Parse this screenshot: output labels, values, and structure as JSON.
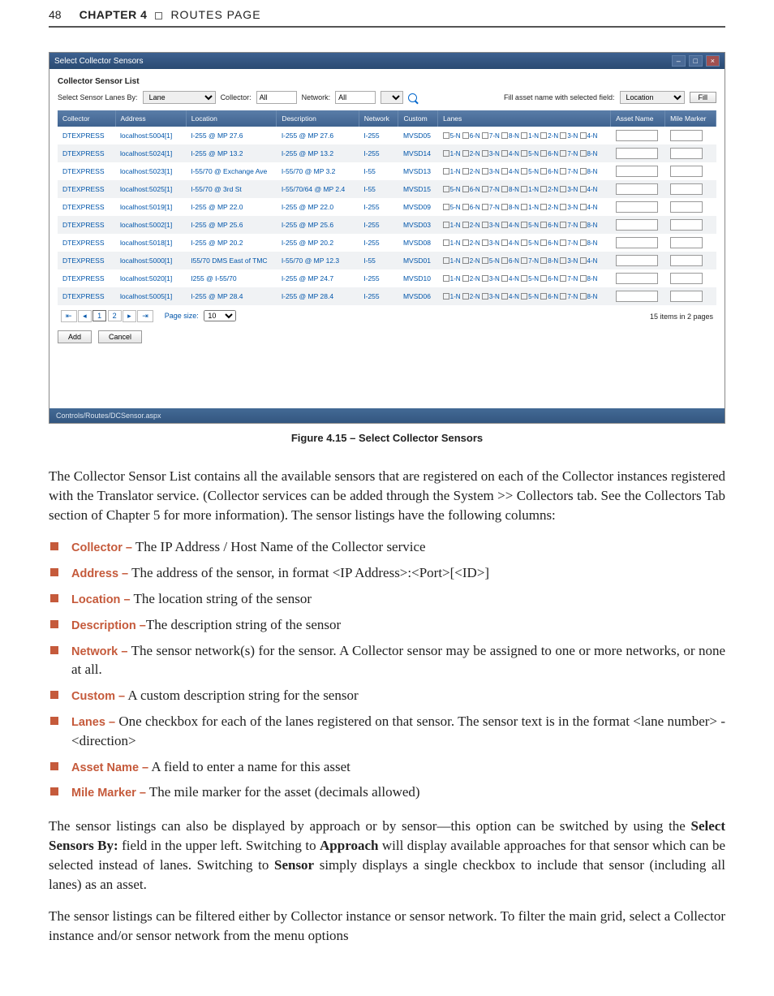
{
  "header": {
    "page_number": "48",
    "chapter_label": "CHAPTER 4",
    "chapter_title": "ROUTES PAGE"
  },
  "figure": {
    "caption": "Figure 4.15 – Select Collector Sensors",
    "window_title": "Select Collector Sensors",
    "section_title": "Collector Sensor List",
    "filter": {
      "select_by_label": "Select Sensor Lanes By:",
      "select_by_value": "Lane",
      "collector_label": "Collector:",
      "collector_value": "All",
      "network_label": "Network:",
      "network_value": "All",
      "fill_label": "Fill asset name with selected field:",
      "fill_value": "Location",
      "fill_button": "Fill"
    },
    "columns": [
      "Collector",
      "Address",
      "Location",
      "Description",
      "Network",
      "Custom",
      "Lanes",
      "Asset Name",
      "Mile Marker"
    ],
    "col_widths": [
      "70px",
      "86px",
      "110px",
      "100px",
      "48px",
      "48px",
      "210px",
      "66px",
      "62px"
    ],
    "rows": [
      {
        "collector": "DTEXPRESS",
        "address": "localhost:5004[1]",
        "location": "I-255 @ MP 27.6",
        "description": "I-255 @ MP 27.6",
        "network": "I-255",
        "custom": "MVSD05",
        "lanes": [
          "5-N",
          "6-N",
          "7-N",
          "8-N",
          "1-N",
          "2-N",
          "3-N",
          "4-N"
        ]
      },
      {
        "collector": "DTEXPRESS",
        "address": "localhost:5024[1]",
        "location": "I-255 @ MP 13.2",
        "description": "I-255 @ MP 13.2",
        "network": "I-255",
        "custom": "MVSD14",
        "lanes": [
          "1-N",
          "2-N",
          "3-N",
          "4-N",
          "5-N",
          "6-N",
          "7-N",
          "8-N"
        ]
      },
      {
        "collector": "DTEXPRESS",
        "address": "localhost:5023[1]",
        "location": "I-55/70 @ Exchange Ave",
        "description": "I-55/70 @ MP 3.2",
        "network": "I-55",
        "custom": "MVSD13",
        "lanes": [
          "1-N",
          "2-N",
          "3-N",
          "4-N",
          "5-N",
          "6-N",
          "7-N",
          "8-N"
        ]
      },
      {
        "collector": "DTEXPRESS",
        "address": "localhost:5025[1]",
        "location": "I-55/70 @ 3rd St",
        "description": "I-55/70/64 @ MP 2.4",
        "network": "I-55",
        "custom": "MVSD15",
        "lanes": [
          "5-N",
          "6-N",
          "7-N",
          "8-N",
          "1-N",
          "2-N",
          "3-N",
          "4-N"
        ]
      },
      {
        "collector": "DTEXPRESS",
        "address": "localhost:5019[1]",
        "location": "I-255 @ MP 22.0",
        "description": "I-255 @ MP 22.0",
        "network": "I-255",
        "custom": "MVSD09",
        "lanes": [
          "5-N",
          "6-N",
          "7-N",
          "8-N",
          "1-N",
          "2-N",
          "3-N",
          "4-N"
        ]
      },
      {
        "collector": "DTEXPRESS",
        "address": "localhost:5002[1]",
        "location": "I-255 @ MP 25.6",
        "description": "I-255 @ MP 25.6",
        "network": "I-255",
        "custom": "MVSD03",
        "lanes": [
          "1-N",
          "2-N",
          "3-N",
          "4-N",
          "5-N",
          "6-N",
          "7-N",
          "8-N"
        ]
      },
      {
        "collector": "DTEXPRESS",
        "address": "localhost:5018[1]",
        "location": "I-255 @ MP 20.2",
        "description": "I-255 @ MP 20.2",
        "network": "I-255",
        "custom": "MVSD08",
        "lanes": [
          "1-N",
          "2-N",
          "3-N",
          "4-N",
          "5-N",
          "6-N",
          "7-N",
          "8-N"
        ]
      },
      {
        "collector": "DTEXPRESS",
        "address": "localhost:5000[1]",
        "location": "I55/70 DMS East of TMC",
        "description": "I-55/70 @ MP 12.3",
        "network": "I-55",
        "custom": "MVSD01",
        "lanes": [
          "1-N",
          "2-N",
          "5-N",
          "6-N",
          "7-N",
          "8-N",
          "3-N",
          "4-N"
        ]
      },
      {
        "collector": "DTEXPRESS",
        "address": "localhost:5020[1]",
        "location": "I255 @ I-55/70",
        "description": "I-255 @ MP 24.7",
        "network": "I-255",
        "custom": "MVSD10",
        "lanes": [
          "1-N",
          "2-N",
          "3-N",
          "4-N",
          "5-N",
          "6-N",
          "7-N",
          "8-N"
        ]
      },
      {
        "collector": "DTEXPRESS",
        "address": "localhost:5005[1]",
        "location": "I-255 @ MP 28.4",
        "description": "I-255 @ MP 28.4",
        "network": "I-255",
        "custom": "MVSD06",
        "lanes": [
          "1-N",
          "2-N",
          "3-N",
          "4-N",
          "5-N",
          "6-N",
          "7-N",
          "8-N"
        ]
      }
    ],
    "pager": {
      "page_size_label": "Page size:",
      "page_size_value": "10",
      "summary": "15 items in 2 pages",
      "pages": [
        "1",
        "2"
      ]
    },
    "buttons": {
      "add": "Add",
      "cancel": "Cancel"
    },
    "footer_path": "Controls/Routes/DCSensor.aspx"
  },
  "body": {
    "intro": "The Collector Sensor List contains all the available sensors that are registered on each of the Collector instances registered with the Translator service. (Collector services can be added through the System >> Collectors tab. See the Collectors Tab section of Chapter 5 for more information). The sensor listings have the following columns:",
    "features": [
      {
        "term": "Collector –",
        "text": " The IP Address / Host Name of the Collector service"
      },
      {
        "term": "Address –",
        "text": " The address of the sensor, in format <IP Address>:<Port>[<ID>]"
      },
      {
        "term": "Location –",
        "text": " The location string of the sensor"
      },
      {
        "term": "Description –",
        "text": "The description string of the sensor"
      },
      {
        "term": "Network –",
        "text": " The sensor network(s) for the sensor. A Collector sensor may be assigned to one or more networks, or none at all."
      },
      {
        "term": "Custom –",
        "text": " A custom description string for the sensor"
      },
      {
        "term": "Lanes –",
        "text": " One checkbox for each of the lanes registered on that sensor. The sensor text is in the format <lane number> - <direction>"
      },
      {
        "term": "Asset Name –",
        "text": " A field to enter a name for this asset"
      },
      {
        "term": "Mile Marker –",
        "text": " The mile marker for the asset (decimals allowed)"
      }
    ],
    "para2_pre": "The sensor listings can also be displayed by approach or by sensor—this option can be switched by using the ",
    "para2_b1": "Select Sensors By:",
    "para2_mid1": " field in the upper left. Switching to ",
    "para2_b2": "Approach",
    "para2_mid2": " will display available approaches for that sensor which can be selected instead of lanes. Switching to ",
    "para2_b3": "Sensor",
    "para2_end": " simply displays a single checkbox to include that sensor (including all lanes) as an asset.",
    "para3": "The sensor listings can be filtered either by Collector instance or sensor network. To filter the main grid, select a Collector instance and/or sensor network from the menu options"
  }
}
